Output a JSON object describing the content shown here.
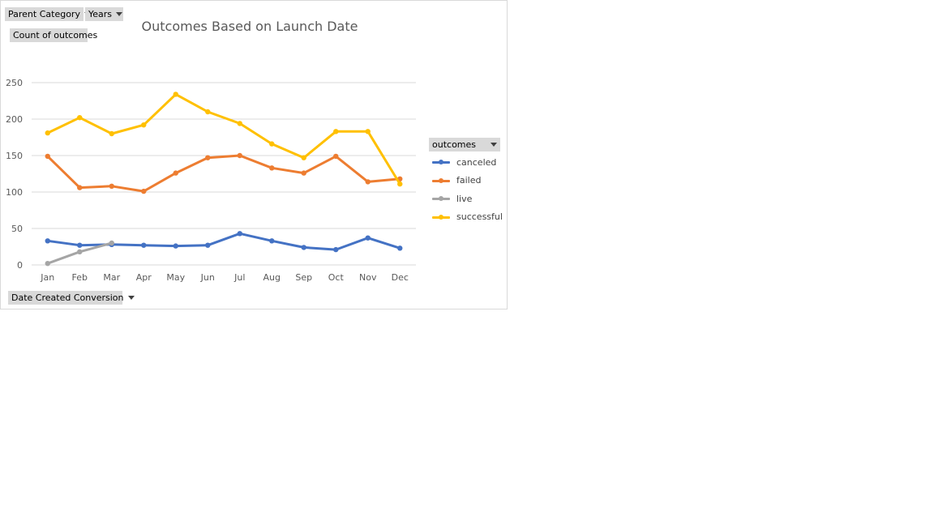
{
  "filters": {
    "parent_category_label": "Parent Category",
    "years_label": "Years",
    "values_label": "Count of outcomes",
    "axis_field_label": "Date Created Conversion",
    "legend_field_label": "outcomes"
  },
  "chart_data": {
    "type": "line",
    "title": "Outcomes Based on Launch Date",
    "xlabel": "",
    "ylabel": "",
    "categories": [
      "Jan",
      "Feb",
      "Mar",
      "Apr",
      "May",
      "Jun",
      "Jul",
      "Aug",
      "Sep",
      "Oct",
      "Nov",
      "Dec"
    ],
    "ylim": [
      0,
      250
    ],
    "yticks": [
      0,
      50,
      100,
      150,
      200,
      250
    ],
    "grid": true,
    "legend_position": "right",
    "series": [
      {
        "name": "canceled",
        "color": "#4472C4",
        "values": [
          33,
          27,
          28,
          27,
          26,
          27,
          43,
          33,
          24,
          21,
          37,
          23
        ]
      },
      {
        "name": "failed",
        "color": "#ED7D31",
        "values": [
          149,
          106,
          108,
          101,
          126,
          147,
          150,
          133,
          126,
          149,
          114,
          118
        ]
      },
      {
        "name": "live",
        "color": "#A5A5A5",
        "values": [
          2,
          18,
          30,
          null,
          null,
          null,
          null,
          null,
          null,
          null,
          null,
          null
        ]
      },
      {
        "name": "successful",
        "color": "#FFC000",
        "values": [
          181,
          202,
          180,
          192,
          234,
          210,
          194,
          166,
          147,
          183,
          183,
          111
        ]
      }
    ]
  }
}
